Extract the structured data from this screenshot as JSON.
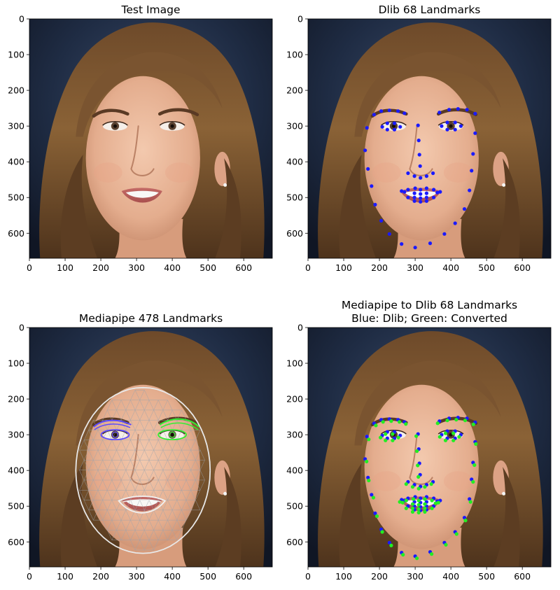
{
  "chart_data": [
    {
      "type": "image",
      "title": "Test Image",
      "title_lines": [
        "Test Image"
      ],
      "xlim": [
        0,
        680
      ],
      "ylim": [
        0,
        670
      ],
      "xticks": [
        0,
        100,
        200,
        300,
        400,
        500,
        600
      ],
      "yticks": [
        0,
        100,
        200,
        300,
        400,
        500,
        600
      ],
      "overlays": []
    },
    {
      "type": "image-scatter",
      "title": "Dlib 68 Landmarks",
      "title_lines": [
        "Dlib 68 Landmarks"
      ],
      "xlim": [
        0,
        680
      ],
      "ylim": [
        0,
        670
      ],
      "xticks": [
        0,
        100,
        200,
        300,
        400,
        500,
        600
      ],
      "yticks": [
        0,
        100,
        200,
        300,
        400,
        500,
        600
      ],
      "overlays": [
        "dlib"
      ]
    },
    {
      "type": "image-mesh",
      "title": "Mediapipe 478 Landmarks",
      "title_lines": [
        "Mediapipe 478 Landmarks"
      ],
      "xlim": [
        0,
        680
      ],
      "ylim": [
        0,
        670
      ],
      "xticks": [
        0,
        100,
        200,
        300,
        400,
        500,
        600
      ],
      "yticks": [
        0,
        100,
        200,
        300,
        400,
        500,
        600
      ],
      "overlays": [
        "mesh"
      ]
    },
    {
      "type": "image-scatter",
      "title": "Mediapipe to Dlib 68 Landmarks\nBlue: Dlib; Green: Converted",
      "title_lines": [
        "Mediapipe to Dlib 68 Landmarks",
        "Blue: Dlib; Green: Converted"
      ],
      "xlim": [
        0,
        680
      ],
      "ylim": [
        0,
        670
      ],
      "xticks": [
        0,
        100,
        200,
        300,
        400,
        500,
        600
      ],
      "yticks": [
        0,
        100,
        200,
        300,
        400,
        500,
        600
      ],
      "overlays": [
        "dlib",
        "converted"
      ]
    }
  ],
  "series": {
    "dlib": {
      "color": "#1a1aff",
      "points": [
        [
          165,
          305
        ],
        [
          160,
          368
        ],
        [
          168,
          420
        ],
        [
          178,
          468
        ],
        [
          188,
          520
        ],
        [
          205,
          565
        ],
        [
          228,
          602
        ],
        [
          262,
          630
        ],
        [
          300,
          640
        ],
        [
          342,
          628
        ],
        [
          382,
          602
        ],
        [
          412,
          572
        ],
        [
          438,
          532
        ],
        [
          452,
          480
        ],
        [
          458,
          425
        ],
        [
          462,
          378
        ],
        [
          468,
          320
        ],
        [
          185,
          268
        ],
        [
          205,
          258
        ],
        [
          228,
          256
        ],
        [
          252,
          258
        ],
        [
          270,
          264
        ],
        [
          368,
          262
        ],
        [
          395,
          254
        ],
        [
          420,
          252
        ],
        [
          445,
          254
        ],
        [
          468,
          265
        ],
        [
          308,
          298
        ],
        [
          310,
          340
        ],
        [
          312,
          380
        ],
        [
          314,
          412
        ],
        [
          280,
          432
        ],
        [
          298,
          440
        ],
        [
          315,
          445
        ],
        [
          332,
          440
        ],
        [
          350,
          432
        ],
        [
          208,
          302
        ],
        [
          222,
          292
        ],
        [
          242,
          292
        ],
        [
          258,
          302
        ],
        [
          242,
          310
        ],
        [
          222,
          310
        ],
        [
          374,
          300
        ],
        [
          390,
          290
        ],
        [
          412,
          290
        ],
        [
          428,
          300
        ],
        [
          412,
          310
        ],
        [
          390,
          310
        ],
        [
          262,
          482
        ],
        [
          280,
          478
        ],
        [
          300,
          474
        ],
        [
          315,
          478
        ],
        [
          332,
          474
        ],
        [
          352,
          478
        ],
        [
          370,
          484
        ],
        [
          352,
          500
        ],
        [
          332,
          510
        ],
        [
          315,
          512
        ],
        [
          298,
          510
        ],
        [
          280,
          500
        ],
        [
          270,
          484
        ],
        [
          298,
          488
        ],
        [
          315,
          490
        ],
        [
          332,
          488
        ],
        [
          362,
          486
        ],
        [
          332,
          500
        ],
        [
          315,
          502
        ],
        [
          298,
          500
        ]
      ]
    },
    "converted": {
      "color": "#22ee22",
      "points": [
        [
          170,
          313
        ],
        [
          164,
          375
        ],
        [
          170,
          428
        ],
        [
          183,
          476
        ],
        [
          193,
          528
        ],
        [
          208,
          572
        ],
        [
          233,
          610
        ],
        [
          266,
          636
        ],
        [
          305,
          646
        ],
        [
          346,
          634
        ],
        [
          386,
          608
        ],
        [
          416,
          578
        ],
        [
          441,
          540
        ],
        [
          455,
          488
        ],
        [
          462,
          432
        ],
        [
          466,
          385
        ],
        [
          470,
          326
        ],
        [
          190,
          274
        ],
        [
          210,
          264
        ],
        [
          233,
          262
        ],
        [
          256,
          264
        ],
        [
          274,
          270
        ],
        [
          363,
          268
        ],
        [
          390,
          260
        ],
        [
          415,
          258
        ],
        [
          440,
          260
        ],
        [
          463,
          271
        ],
        [
          303,
          304
        ],
        [
          305,
          346
        ],
        [
          307,
          386
        ],
        [
          309,
          418
        ],
        [
          275,
          438
        ],
        [
          293,
          446
        ],
        [
          310,
          451
        ],
        [
          327,
          446
        ],
        [
          345,
          438
        ],
        [
          203,
          308
        ],
        [
          217,
          298
        ],
        [
          237,
          298
        ],
        [
          253,
          308
        ],
        [
          237,
          316
        ],
        [
          217,
          316
        ],
        [
          369,
          306
        ],
        [
          385,
          296
        ],
        [
          407,
          296
        ],
        [
          423,
          306
        ],
        [
          407,
          316
        ],
        [
          385,
          316
        ],
        [
          257,
          488
        ],
        [
          275,
          484
        ],
        [
          295,
          480
        ],
        [
          310,
          484
        ],
        [
          327,
          480
        ],
        [
          347,
          484
        ],
        [
          365,
          490
        ],
        [
          347,
          506
        ],
        [
          327,
          516
        ],
        [
          310,
          518
        ],
        [
          293,
          516
        ],
        [
          275,
          506
        ],
        [
          265,
          490
        ],
        [
          293,
          494
        ],
        [
          310,
          496
        ],
        [
          327,
          494
        ],
        [
          357,
          492
        ],
        [
          327,
          506
        ],
        [
          310,
          508
        ],
        [
          293,
          506
        ]
      ]
    }
  }
}
